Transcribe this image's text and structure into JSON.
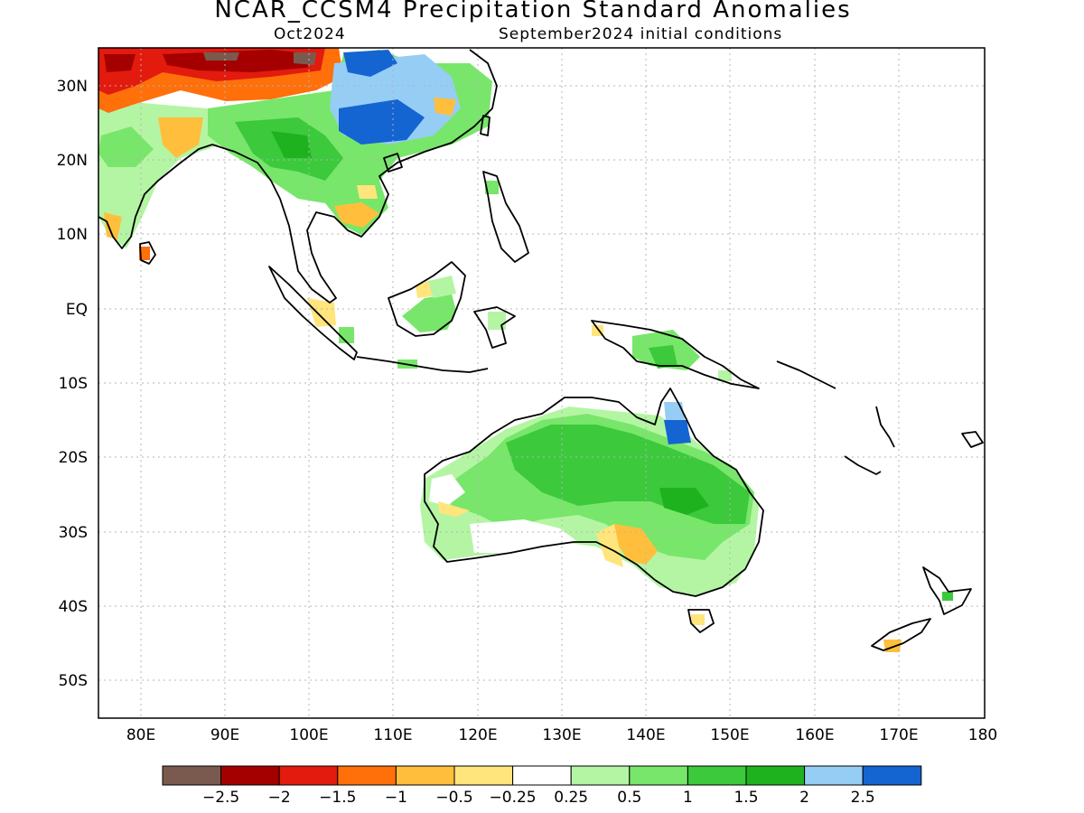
{
  "header": {
    "title": "NCAR_CCSM4 Precipitation Standard Anomalies",
    "valid_month": "Oct2024",
    "init_conditions": "September2024 initial conditions"
  },
  "axes": {
    "lat_labels": [
      "30N",
      "20N",
      "10N",
      "EQ",
      "10S",
      "20S",
      "30S",
      "40S",
      "50S"
    ],
    "lon_labels": [
      "80E",
      "90E",
      "100E",
      "110E",
      "120E",
      "130E",
      "140E",
      "150E",
      "160E",
      "170E",
      "180"
    ]
  },
  "colorbar": {
    "colors": [
      "#7a5a4e",
      "#a50000",
      "#e21b0e",
      "#ff6f0a",
      "#ffbf3c",
      "#ffe57c",
      "#ffffff",
      "#b4f5a4",
      "#78e66a",
      "#3cc93c",
      "#1fb21f",
      "#96cdf5",
      "#1464d2"
    ],
    "ticks": [
      "−2.5",
      "−2",
      "−1.5",
      "−1",
      "−0.5",
      "−0.25",
      "0.25",
      "0.5",
      "1",
      "1.5",
      "2",
      "2.5"
    ]
  }
}
